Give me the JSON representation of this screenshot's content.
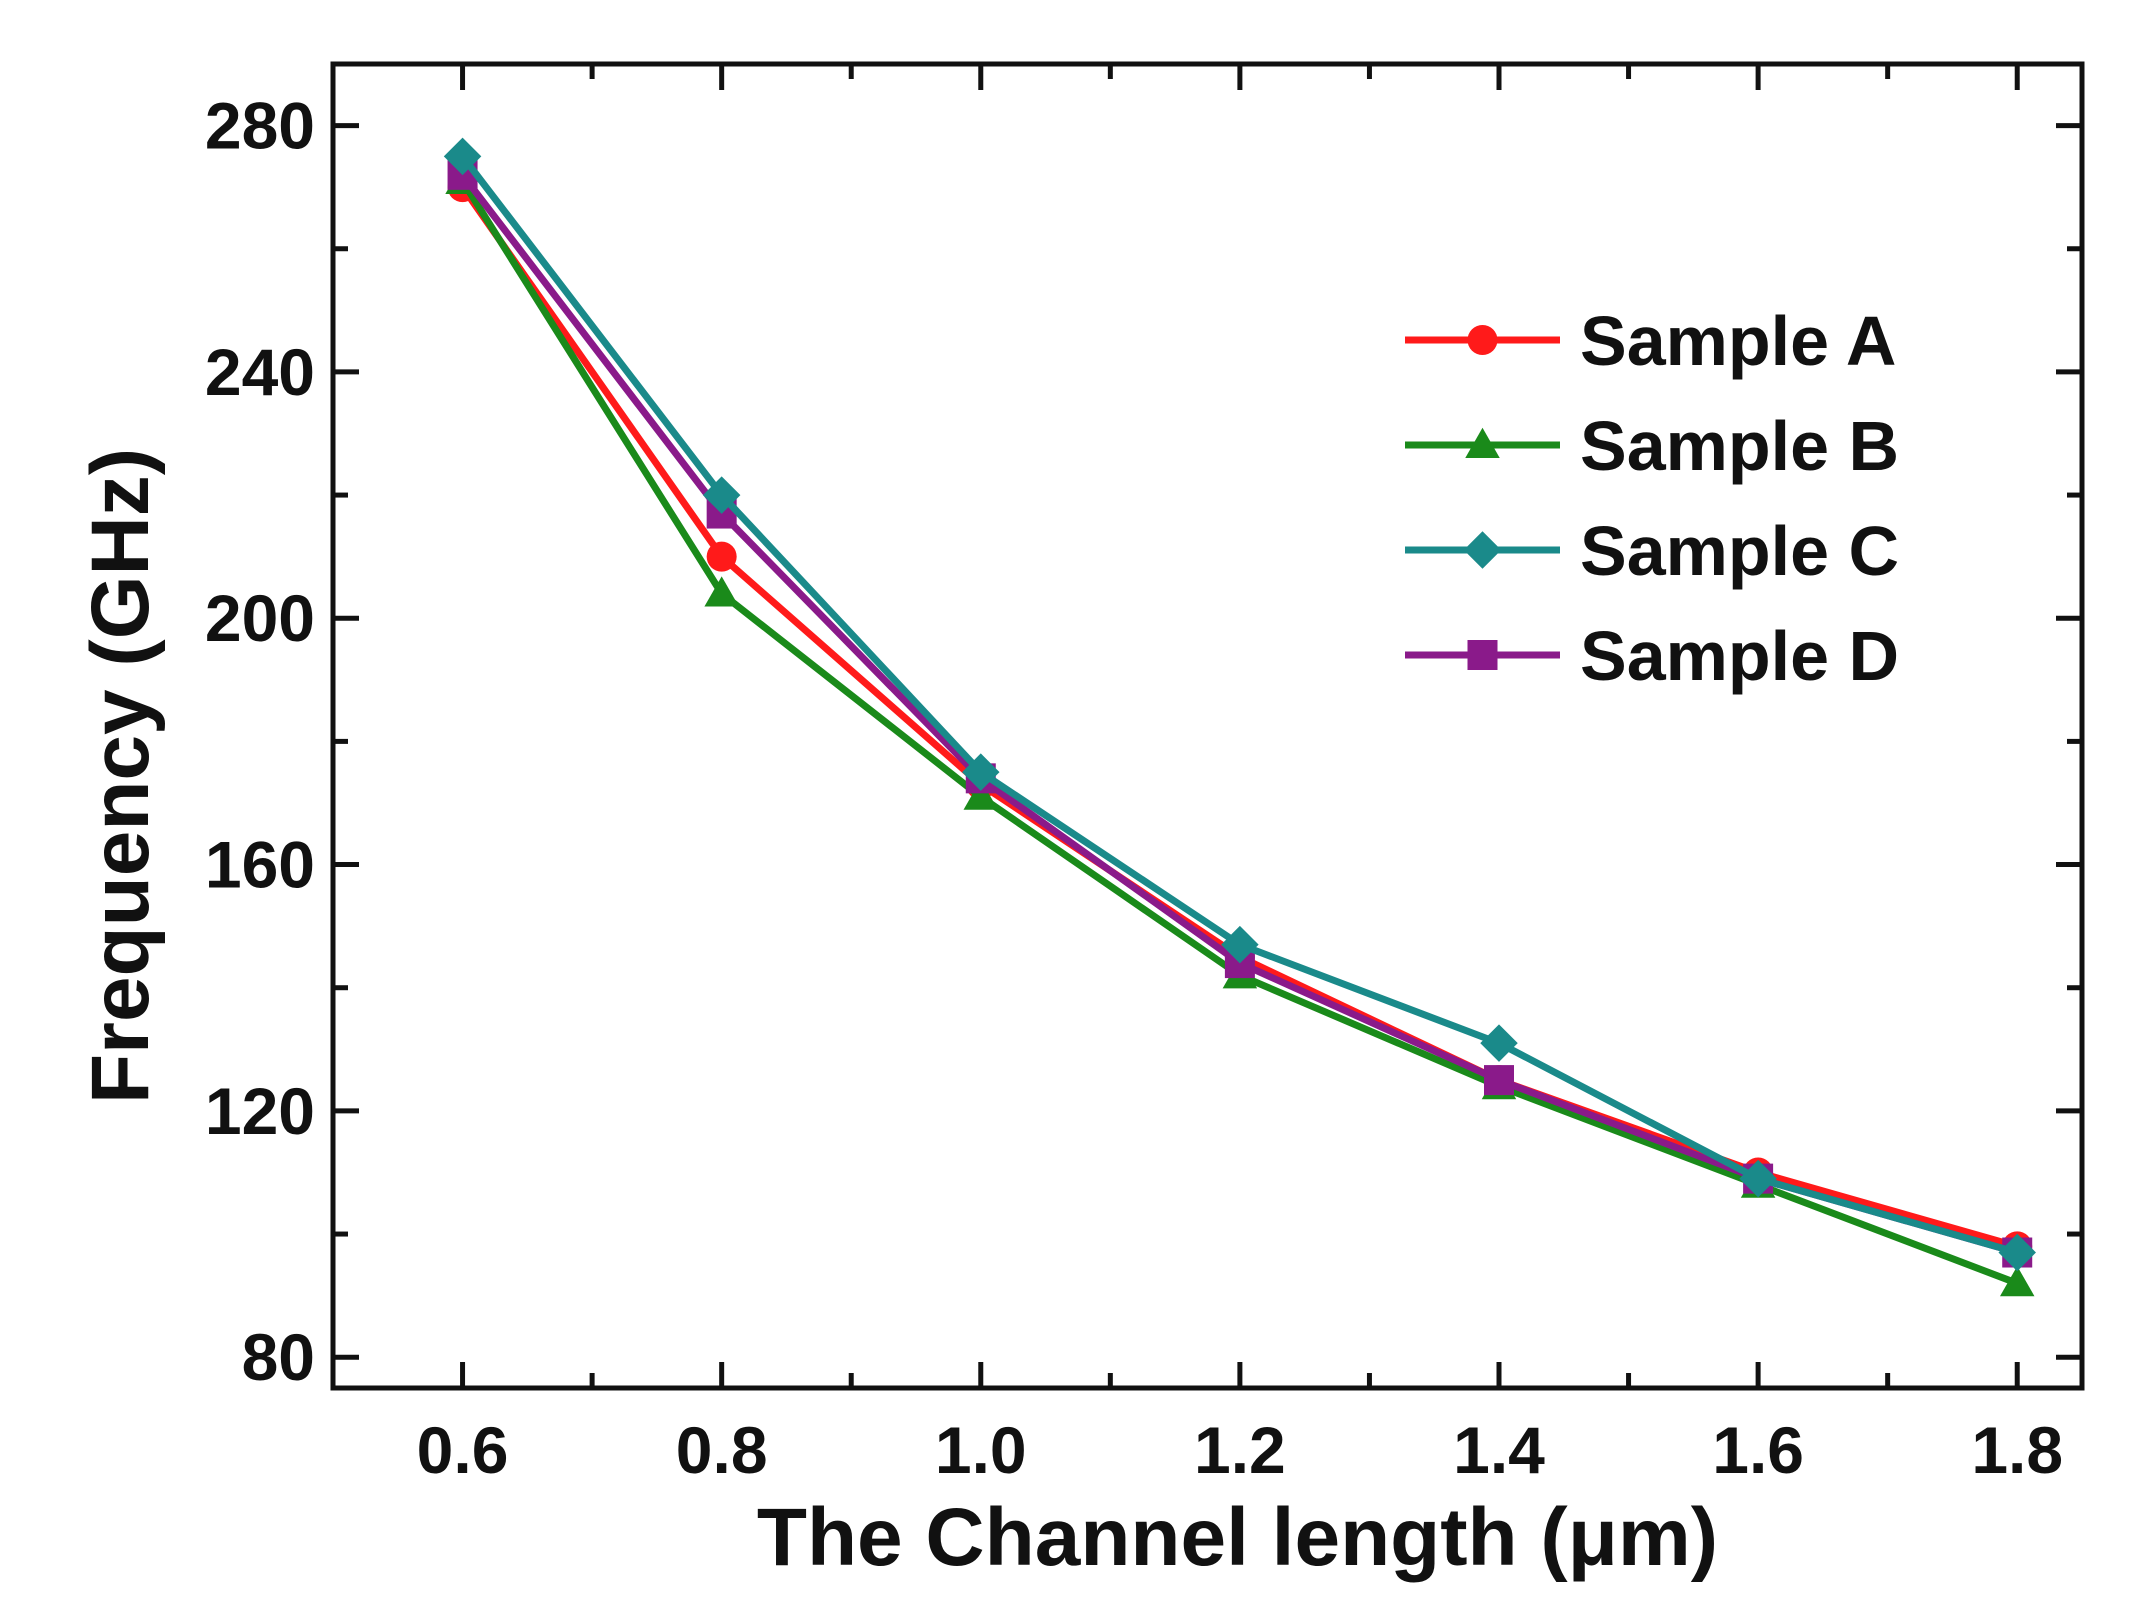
{
  "chart_data": {
    "type": "line",
    "title": "",
    "xlabel": "The Channel length (μm)",
    "ylabel": "Frequency (GHz)",
    "xlim": [
      0.5,
      1.85
    ],
    "ylim": [
      75,
      290
    ],
    "x_ticks": [
      0.6,
      0.8,
      1.0,
      1.2,
      1.4,
      1.6,
      1.8
    ],
    "x_tick_labels": [
      "0.6",
      "0.8",
      "1.0",
      "1.2",
      "1.4",
      "1.6",
      "1.8"
    ],
    "y_ticks": [
      80,
      120,
      160,
      200,
      240,
      280
    ],
    "y_tick_labels": [
      "80",
      "120",
      "160",
      "200",
      "240",
      "280"
    ],
    "x_minor_ticks": [
      0.7,
      0.9,
      1.1,
      1.3,
      1.5,
      1.7
    ],
    "y_minor_ticks": [
      100,
      140,
      180,
      220,
      260
    ],
    "grid": false,
    "legend_position": "top-right",
    "x": [
      0.6,
      0.8,
      1.0,
      1.2,
      1.4,
      1.6,
      1.8
    ],
    "series": [
      {
        "name": "Sample A",
        "color": "#ff1a1a",
        "marker": "circle",
        "values": [
          270,
          210,
          173,
          145,
          125,
          110,
          98
        ]
      },
      {
        "name": "Sample B",
        "color": "#1a8a1a",
        "marker": "triangle",
        "values": [
          271,
          204,
          171,
          142,
          124,
          108,
          92
        ]
      },
      {
        "name": "Sample C",
        "color": "#1a8a8a",
        "marker": "diamond",
        "values": [
          275,
          220,
          175,
          147,
          131,
          109,
          97
        ]
      },
      {
        "name": "Sample D",
        "color": "#8a1a8a",
        "marker": "square",
        "values": [
          272,
          217,
          174,
          144,
          125,
          109,
          97
        ]
      }
    ]
  }
}
